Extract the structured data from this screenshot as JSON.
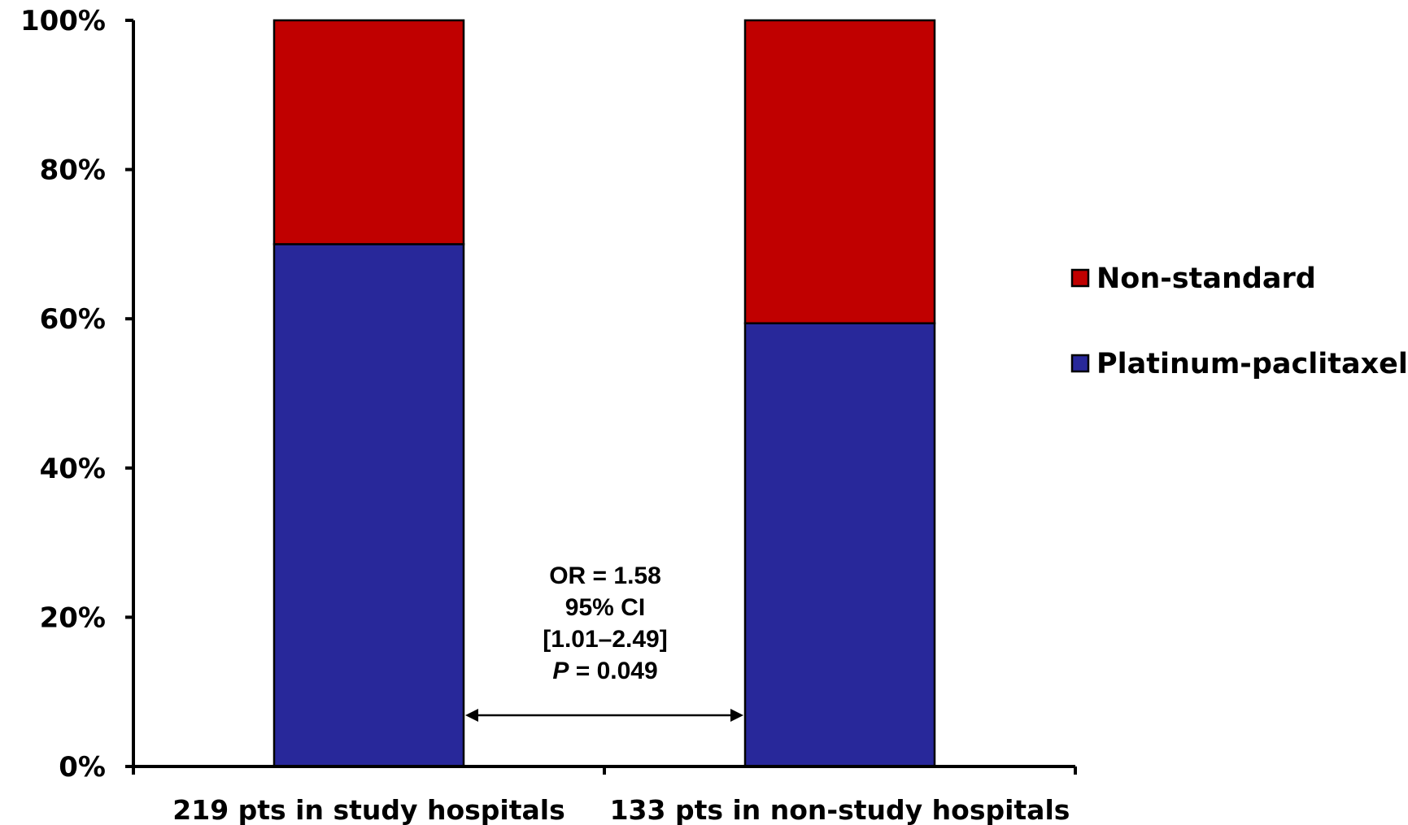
{
  "chart_data": {
    "type": "bar",
    "stacked": true,
    "categories": [
      "219 pts in study hospitals",
      "133 pts in non-study hospitals"
    ],
    "series": [
      {
        "name": "Platinum-paclitaxel",
        "values": [
          70,
          59.4
        ],
        "color": "#28289a"
      },
      {
        "name": "Non-standard",
        "values": [
          30,
          40.6
        ],
        "color": "#c00000"
      }
    ],
    "ylim": [
      0,
      100
    ],
    "yticks": [
      "0%",
      "20%",
      "40%",
      "60%",
      "80%",
      "100%"
    ],
    "ytick_values": [
      0,
      20,
      40,
      60,
      80,
      100
    ],
    "xlabel": "",
    "ylabel": "",
    "title": "",
    "grid": false,
    "legend": {
      "placement": "right",
      "entries": [
        "Non-standard",
        "Platinum-paclitaxel"
      ]
    },
    "annotation": {
      "lines": [
        "OR = 1.58",
        "95% CI",
        "[1.01–2.49]"
      ],
      "p_label": "P",
      "p_value": " = 0.049",
      "arrow": "double-headed between bars"
    }
  }
}
